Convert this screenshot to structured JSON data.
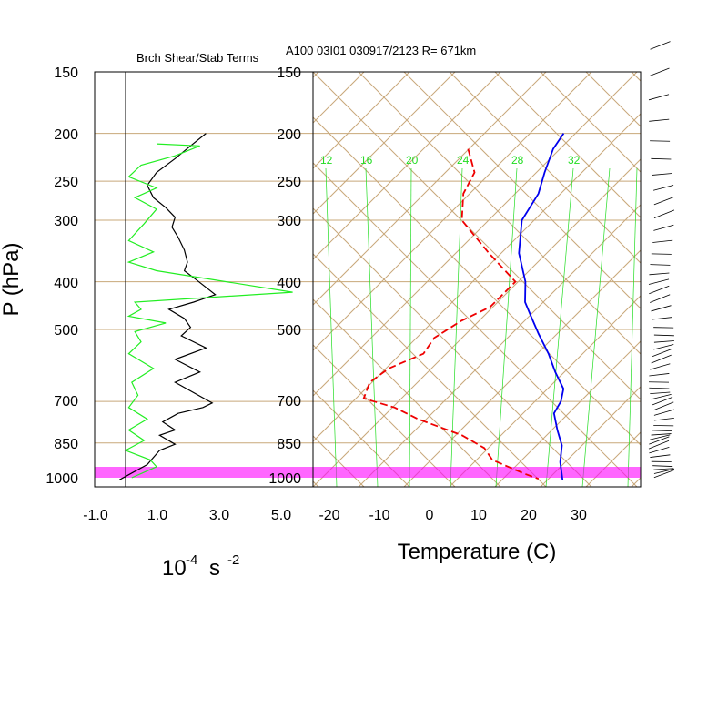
{
  "titles": {
    "left": "Brch Shear/Stab Terms",
    "right": "A100 03I01 030917/2123 R= 671km"
  },
  "y_axis_label": "P (hPa)",
  "x_axis_label_right": "Temperature (C)",
  "x_axis_label_left_base": "10",
  "x_axis_label_left_exp": "-4",
  "x_axis_label_left_unit": "s",
  "x_axis_label_left_unit_exp": "-2",
  "pressure_ticks": [
    "150",
    "200",
    "250",
    "300",
    "400",
    "500",
    "700",
    "850",
    "1000"
  ],
  "left_x_ticks": [
    "-1.0",
    "1.0",
    "3.0",
    "5.0"
  ],
  "temp_x_ticks": [
    "-20",
    "-10",
    "0",
    "10",
    "20",
    "30"
  ],
  "mixing_ratio_labels": [
    "12",
    "16",
    "20",
    "24",
    "28",
    "32"
  ],
  "colors": {
    "temperature": "#0000ee",
    "dewpoint": "#ee0000",
    "shear_term": "#000000",
    "stab_term": "#22ee22",
    "background_lines": "#c8a87a",
    "mixing_ratio": "#22dd22",
    "highlight_band": "#ff00ff"
  },
  "chart_data": [
    {
      "type": "line",
      "title": "Brch Shear/Stab Terms",
      "xlabel": "10^-4 s^-2",
      "ylabel": "P (hPa)",
      "xlim": [
        -1.0,
        5.0
      ],
      "ylim": [
        1000,
        150
      ],
      "y_log_scale": true,
      "series": [
        {
          "key": "black",
          "points": [
            {
              "x": 2.6,
              "p": 200
            },
            {
              "x": 2.1,
              "p": 212
            },
            {
              "x": 1.6,
              "p": 225
            },
            {
              "x": 1.0,
              "p": 240
            },
            {
              "x": 0.7,
              "p": 255
            },
            {
              "x": 0.9,
              "p": 270
            },
            {
              "x": 1.3,
              "p": 283
            },
            {
              "x": 1.6,
              "p": 296
            },
            {
              "x": 1.5,
              "p": 310
            },
            {
              "x": 1.7,
              "p": 325
            },
            {
              "x": 1.9,
              "p": 345
            },
            {
              "x": 2.0,
              "p": 365
            },
            {
              "x": 1.9,
              "p": 380
            },
            {
              "x": 2.3,
              "p": 397
            },
            {
              "x": 2.9,
              "p": 425
            },
            {
              "x": 2.2,
              "p": 440
            },
            {
              "x": 1.4,
              "p": 455
            },
            {
              "x": 1.9,
              "p": 475
            },
            {
              "x": 2.1,
              "p": 495
            },
            {
              "x": 1.8,
              "p": 515
            },
            {
              "x": 2.6,
              "p": 545
            },
            {
              "x": 1.6,
              "p": 575
            },
            {
              "x": 2.4,
              "p": 610
            },
            {
              "x": 1.6,
              "p": 640
            },
            {
              "x": 2.8,
              "p": 705
            },
            {
              "x": 2.5,
              "p": 720
            },
            {
              "x": 1.7,
              "p": 740
            },
            {
              "x": 1.2,
              "p": 770
            },
            {
              "x": 1.6,
              "p": 800
            },
            {
              "x": 1.1,
              "p": 820
            },
            {
              "x": 1.6,
              "p": 855
            },
            {
              "x": 1.1,
              "p": 880
            },
            {
              "x": 0.7,
              "p": 940
            },
            {
              "x": -0.2,
              "p": 1010
            }
          ]
        },
        {
          "key": "green",
          "points": [
            {
              "x": 1.0,
              "p": 210
            },
            {
              "x": 2.4,
              "p": 212
            },
            {
              "x": 1.6,
              "p": 222
            },
            {
              "x": 0.5,
              "p": 232
            },
            {
              "x": 0.1,
              "p": 245
            },
            {
              "x": 1.0,
              "p": 258
            },
            {
              "x": 0.3,
              "p": 270
            },
            {
              "x": 1.0,
              "p": 285
            },
            {
              "x": 0.6,
              "p": 305
            },
            {
              "x": 0.1,
              "p": 330
            },
            {
              "x": 0.9,
              "p": 348
            },
            {
              "x": 0.1,
              "p": 365
            },
            {
              "x": 1.0,
              "p": 380
            },
            {
              "x": 5.4,
              "p": 420
            },
            {
              "x": 0.3,
              "p": 440
            },
            {
              "x": 0.5,
              "p": 455
            },
            {
              "x": 0.1,
              "p": 470
            },
            {
              "x": 1.3,
              "p": 485
            },
            {
              "x": 0.3,
              "p": 505
            },
            {
              "x": 0.5,
              "p": 530
            },
            {
              "x": 0.1,
              "p": 560
            },
            {
              "x": 0.9,
              "p": 600
            },
            {
              "x": 0.2,
              "p": 640
            },
            {
              "x": 0.4,
              "p": 680
            },
            {
              "x": 0.1,
              "p": 720
            },
            {
              "x": 0.7,
              "p": 760
            },
            {
              "x": 0.1,
              "p": 800
            },
            {
              "x": 0.6,
              "p": 840
            },
            {
              "x": 0.0,
              "p": 880
            },
            {
              "x": 0.8,
              "p": 920
            },
            {
              "x": 1.0,
              "p": 950
            },
            {
              "x": 0.2,
              "p": 1000
            }
          ]
        }
      ]
    },
    {
      "type": "line",
      "title": "A100 03I01 030917/2123 R= 671km",
      "xlabel": "Temperature (C)",
      "ylabel": "P (hPa)",
      "diagram": "skew-T log-P",
      "ylim": [
        1000,
        150
      ],
      "y_log_scale": true,
      "series": [
        {
          "key": "temperature",
          "points": [
            {
              "t": -42,
              "p": 200
            },
            {
              "t": -41,
              "p": 215
            },
            {
              "t": -38,
              "p": 240
            },
            {
              "t": -35,
              "p": 265
            },
            {
              "t": -33,
              "p": 300
            },
            {
              "t": -27,
              "p": 350
            },
            {
              "t": -20,
              "p": 400
            },
            {
              "t": -16,
              "p": 440
            },
            {
              "t": -12,
              "p": 470
            },
            {
              "t": -7,
              "p": 510
            },
            {
              "t": -1,
              "p": 560
            },
            {
              "t": 4,
              "p": 610
            },
            {
              "t": 9,
              "p": 660
            },
            {
              "t": 11,
              "p": 700
            },
            {
              "t": 12,
              "p": 740
            },
            {
              "t": 16,
              "p": 800
            },
            {
              "t": 20,
              "p": 860
            },
            {
              "t": 23,
              "p": 930
            },
            {
              "t": 27,
              "p": 1010
            }
          ]
        },
        {
          "key": "dewpoint",
          "points": [
            {
              "t": -58,
              "p": 215
            },
            {
              "t": -52,
              "p": 240
            },
            {
              "t": -50,
              "p": 265
            },
            {
              "t": -45,
              "p": 300
            },
            {
              "t": -33,
              "p": 350
            },
            {
              "t": -22,
              "p": 400
            },
            {
              "t": -22,
              "p": 430
            },
            {
              "t": -22,
              "p": 450
            },
            {
              "t": -25,
              "p": 480
            },
            {
              "t": -27,
              "p": 520
            },
            {
              "t": -26,
              "p": 560
            },
            {
              "t": -30,
              "p": 600
            },
            {
              "t": -31,
              "p": 640
            },
            {
              "t": -29,
              "p": 690
            },
            {
              "t": -21,
              "p": 720
            },
            {
              "t": -14,
              "p": 760
            },
            {
              "t": -2,
              "p": 820
            },
            {
              "t": 5,
              "p": 870
            },
            {
              "t": 9,
              "p": 920
            },
            {
              "t": 18,
              "p": 980
            },
            {
              "t": 22,
              "p": 1005
            }
          ]
        }
      ]
    }
  ]
}
